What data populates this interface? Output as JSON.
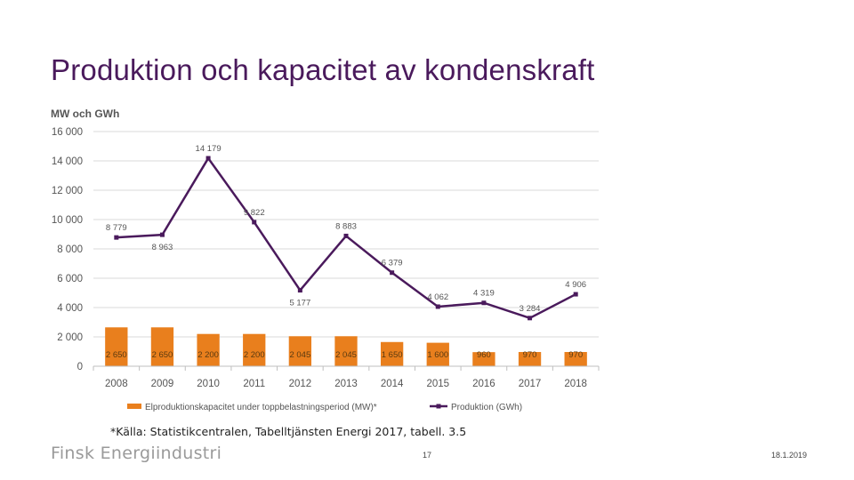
{
  "slide": {
    "title": "Produktion och kapacitet av kondenskraft",
    "source": "*Källa: Statistikcentralen, Tabelltjänsten Energi 2017, tabell. 3.5",
    "logo": "Finsk Energiindustri",
    "page_number": "17",
    "date": "18.1.2019"
  },
  "colors": {
    "bar": "#e97f1d",
    "line": "#4a1a5c",
    "grid": "#d9d9d9",
    "text": "#555555"
  },
  "chart_data": {
    "type": "bar+line",
    "ylabel": "MW och GWh",
    "ylim": [
      0,
      16000
    ],
    "yticks": [
      0,
      2000,
      4000,
      6000,
      8000,
      10000,
      12000,
      14000,
      16000
    ],
    "ytick_labels": [
      "0",
      "2 000",
      "4 000",
      "6 000",
      "8 000",
      "10 000",
      "12 000",
      "14 000",
      "16 000"
    ],
    "categories": [
      "2008",
      "2009",
      "2010",
      "2011",
      "2012",
      "2013",
      "2014",
      "2015",
      "2016",
      "2017",
      "2018"
    ],
    "series": [
      {
        "name": "Elproduktionskapacitet under toppbelastningsperiod (MW)*",
        "type": "bar",
        "values": [
          2650,
          2650,
          2200,
          2200,
          2045,
          2045,
          1650,
          1600,
          960,
          970,
          970
        ],
        "labels": [
          "2 650",
          "2 650",
          "2 200",
          "2 200",
          "2 045",
          "2 045",
          "1 650",
          "1 600",
          "960",
          "970",
          "970"
        ]
      },
      {
        "name": "Produktion (GWh)",
        "type": "line",
        "values": [
          8779,
          8963,
          14179,
          9822,
          5177,
          8883,
          6379,
          4062,
          4319,
          3284,
          4906
        ],
        "labels": [
          "8 779",
          "8 963",
          "14 179",
          "9 822",
          "5 177",
          "8 883",
          "6 379",
          "4 062",
          "4 319",
          "3 284",
          "4 906"
        ]
      }
    ],
    "legend": "bottom"
  }
}
